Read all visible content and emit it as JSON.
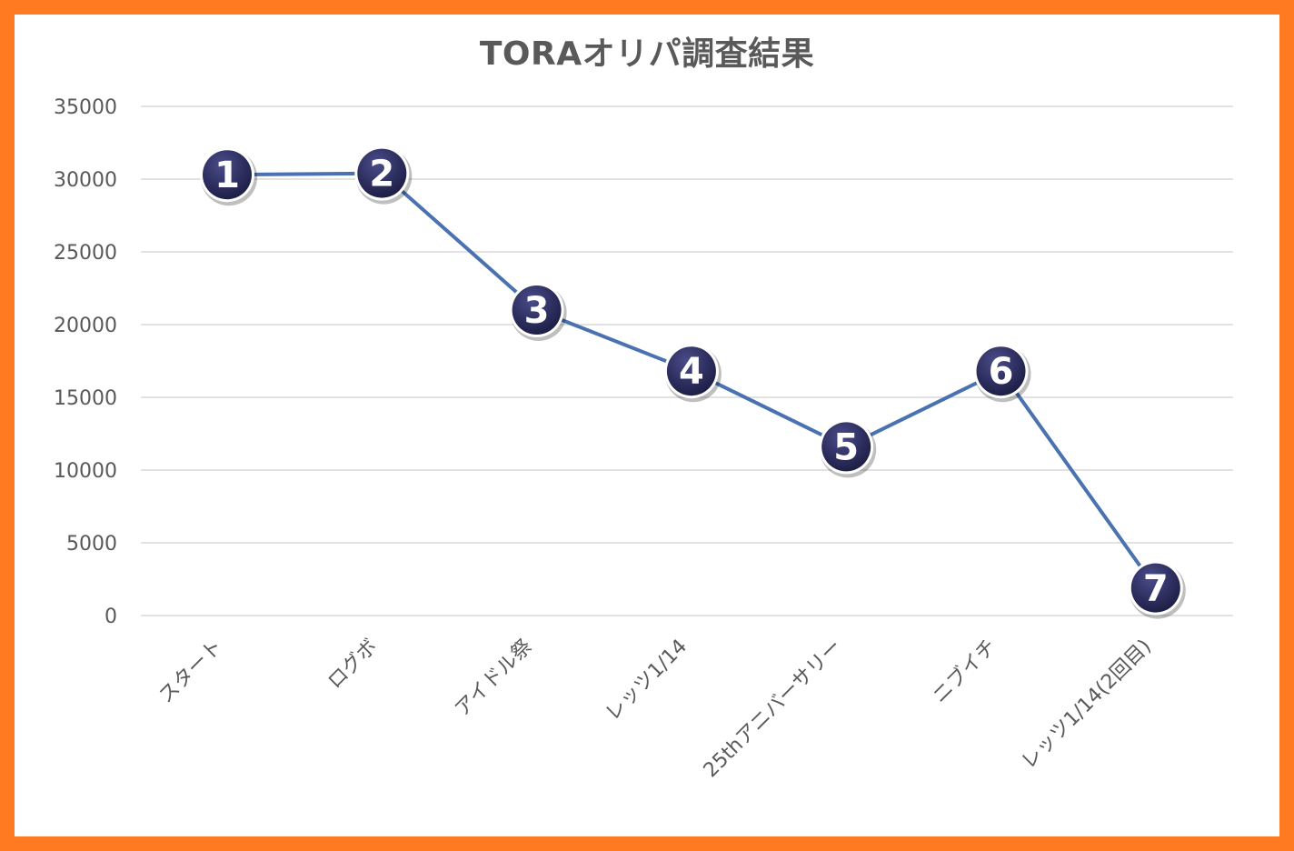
{
  "chart_data": {
    "type": "line",
    "title": "TORAオリパ調査結果",
    "categories": [
      "スタート",
      "ログボ",
      "アイドル祭",
      "レッツ1/14",
      "25thアニバーサリー",
      "ニブイチ",
      "レッツ1/14(2回目)"
    ],
    "series": [
      {
        "values": [
          30300,
          30400,
          21000,
          16800,
          11600,
          16800,
          1900
        ]
      }
    ],
    "markers": [
      "1",
      "2",
      "3",
      "4",
      "5",
      "6",
      "7"
    ],
    "ylim": [
      0,
      35000
    ],
    "yticks": [
      "0",
      "5000",
      "10000",
      "15000",
      "20000",
      "25000",
      "30000",
      "35000"
    ],
    "grid": true,
    "xlabel": "",
    "ylabel": "",
    "colors": {
      "line": "#4a72b0",
      "marker_fill": "#2d2e5f",
      "grid": "#d9d9d9",
      "frame": "#ff7a21"
    }
  }
}
